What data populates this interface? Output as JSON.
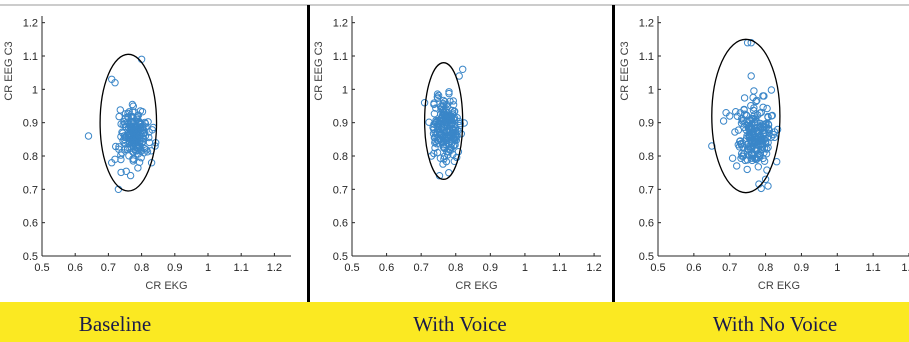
{
  "captions": [
    "Baseline",
    "With Voice",
    "With No Voice"
  ],
  "colors": {
    "marker": "#3a86c8",
    "caption_band": "#fbe922",
    "divider": "#000000",
    "ellipse": "#000000"
  },
  "chart_data": [
    {
      "type": "scatter",
      "panel": "Baseline",
      "xlabel": "CR EKG",
      "ylabel": "CR EEG C3",
      "xlim": [
        0.5,
        1.25
      ],
      "ylim": [
        0.5,
        1.22
      ],
      "xticks": [
        "0.5",
        "0.6",
        "0.7",
        "0.8",
        "0.9",
        "1",
        "1.1",
        "1.2"
      ],
      "yticks": [
        "0.5",
        "0.6",
        "0.7",
        "0.8",
        "0.9",
        "1",
        "1.1",
        "1.2"
      ],
      "ellipse": {
        "cx": 0.76,
        "cy": 0.9,
        "rx": 0.085,
        "ry": 0.205
      },
      "cluster": {
        "cx": 0.78,
        "cy": 0.865,
        "sx": 0.022,
        "sy": 0.04,
        "n": 190
      },
      "outliers": [
        [
          0.64,
          0.86
        ],
        [
          0.71,
          1.03
        ],
        [
          0.72,
          1.02
        ],
        [
          0.73,
          0.7
        ],
        [
          0.8,
          1.09
        ],
        [
          0.71,
          0.78
        ],
        [
          0.72,
          0.79
        ],
        [
          0.83,
          0.78
        ]
      ]
    },
    {
      "type": "scatter",
      "panel": "With Voice",
      "xlabel": "CR EKG",
      "ylabel": "CR EEG C3",
      "xlim": [
        0.5,
        1.22
      ],
      "ylim": [
        0.5,
        1.22
      ],
      "xticks": [
        "0.5",
        "0.6",
        "0.7",
        "0.8",
        "0.9",
        "1",
        "1.1",
        "1.2"
      ],
      "yticks": [
        "0.5",
        "0.6",
        "0.7",
        "0.8",
        "0.9",
        "1",
        "1.1",
        "1.2"
      ],
      "ellipse": {
        "cx": 0.765,
        "cy": 0.905,
        "rx": 0.055,
        "ry": 0.175
      },
      "cluster": {
        "cx": 0.77,
        "cy": 0.88,
        "sx": 0.02,
        "sy": 0.045,
        "n": 200
      },
      "outliers": [
        [
          0.71,
          0.96
        ],
        [
          0.82,
          1.06
        ],
        [
          0.81,
          1.04
        ],
        [
          0.73,
          0.8
        ],
        [
          0.78,
          0.75
        ]
      ]
    },
    {
      "type": "scatter",
      "panel": "With No Voice",
      "xlabel": "CR EKG",
      "ylabel": "CR EEG C3",
      "xlim": [
        0.5,
        1.2
      ],
      "ylim": [
        0.5,
        1.22
      ],
      "xticks": [
        "0.5",
        "0.6",
        "0.7",
        "0.8",
        "0.9",
        "1",
        "1.1",
        "1.2"
      ],
      "yticks": [
        "0.5",
        "0.6",
        "0.7",
        "0.8",
        "0.9",
        "1",
        "1.1",
        "1.2"
      ],
      "ellipse": {
        "cx": 0.745,
        "cy": 0.92,
        "rx": 0.095,
        "ry": 0.23
      },
      "cluster": {
        "cx": 0.77,
        "cy": 0.87,
        "sx": 0.025,
        "sy": 0.05,
        "n": 210
      },
      "outliers": [
        [
          0.65,
          0.83
        ],
        [
          0.75,
          1.14
        ],
        [
          0.76,
          1.14
        ],
        [
          0.76,
          1.04
        ],
        [
          0.7,
          0.92
        ],
        [
          0.69,
          0.93
        ],
        [
          0.8,
          0.73
        ]
      ]
    }
  ]
}
